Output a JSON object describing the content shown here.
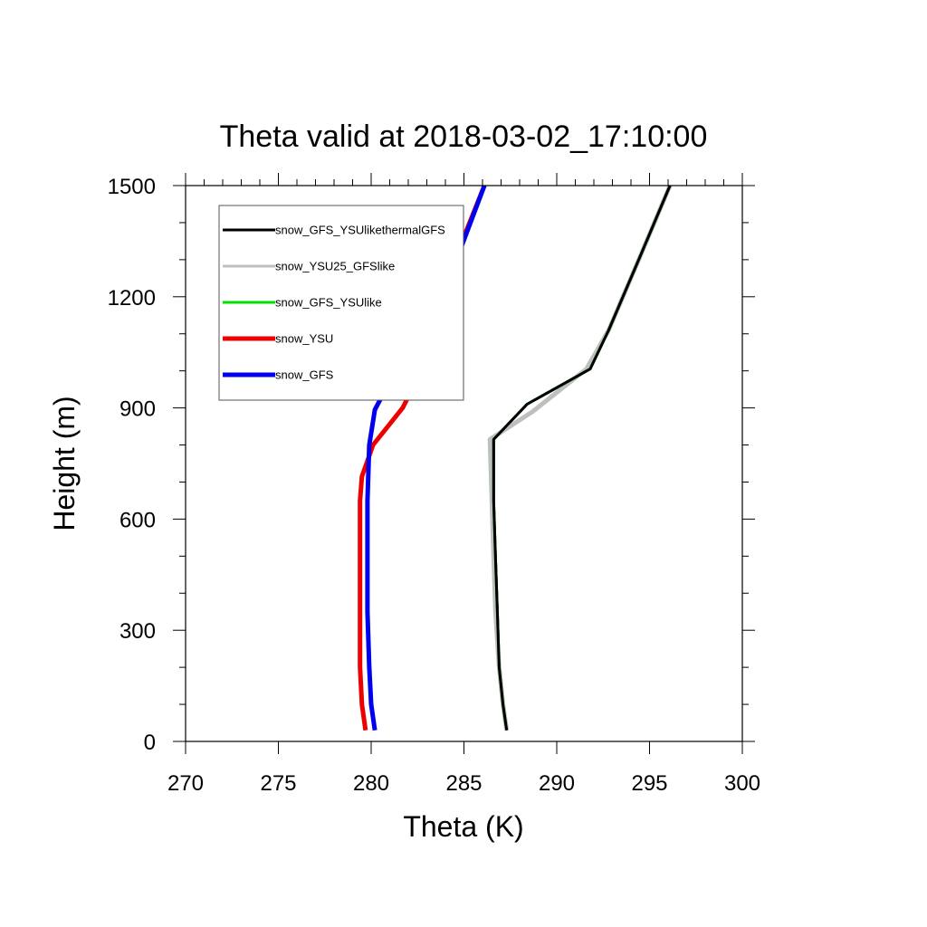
{
  "chart_data": {
    "type": "line",
    "title": "Theta valid at 2018-03-02_17:10:00",
    "xlabel": "Theta (K)",
    "ylabel": "Height (m)",
    "xlim": [
      270,
      300
    ],
    "ylim": [
      0,
      1500
    ],
    "xticks": [
      "270",
      "275",
      "280",
      "285",
      "290",
      "295",
      "300"
    ],
    "yticks": [
      "0",
      "300",
      "600",
      "900",
      "1200",
      "1500"
    ],
    "grid": false,
    "legend_position": "top-left",
    "series": [
      {
        "name": "snow_GFS_YSUlikethermalGFS",
        "color": "#000000",
        "points": [
          [
            287.3,
            30
          ],
          [
            287.1,
            100
          ],
          [
            286.9,
            200
          ],
          [
            286.8,
            350
          ],
          [
            286.7,
            500
          ],
          [
            286.6,
            650
          ],
          [
            286.6,
            815
          ],
          [
            288.4,
            910
          ],
          [
            291.8,
            1005
          ],
          [
            292.8,
            1110
          ],
          [
            294.5,
            1310
          ],
          [
            296.1,
            1500
          ]
        ]
      },
      {
        "name": "snow_YSU25_GFSlike",
        "color": "#bfbfbf",
        "points": [
          [
            287.3,
            30
          ],
          [
            287.1,
            100
          ],
          [
            286.9,
            200
          ],
          [
            286.7,
            350
          ],
          [
            286.6,
            500
          ],
          [
            286.5,
            650
          ],
          [
            286.4,
            815
          ],
          [
            288.7,
            890
          ],
          [
            291.6,
            1005
          ],
          [
            292.8,
            1110
          ],
          [
            294.5,
            1310
          ],
          [
            296.1,
            1500
          ]
        ]
      },
      {
        "name": "snow_GFS_YSUlike",
        "color": "#00e000",
        "points": [
          [
            287.3,
            30
          ],
          [
            287.1,
            100
          ],
          [
            286.9,
            200
          ],
          [
            286.8,
            350
          ],
          [
            286.7,
            500
          ],
          [
            286.6,
            650
          ],
          [
            286.6,
            815
          ],
          [
            288.4,
            910
          ],
          [
            291.8,
            1005
          ],
          [
            292.8,
            1110
          ],
          [
            294.5,
            1310
          ],
          [
            296.1,
            1500
          ]
        ]
      },
      {
        "name": "snow_YSU",
        "color": "#ee0000",
        "points": [
          [
            279.7,
            30
          ],
          [
            279.5,
            100
          ],
          [
            279.4,
            200
          ],
          [
            279.4,
            350
          ],
          [
            279.4,
            500
          ],
          [
            279.4,
            650
          ],
          [
            279.5,
            715
          ],
          [
            280.1,
            800
          ],
          [
            281.7,
            900
          ],
          [
            282.6,
            990
          ],
          [
            283.1,
            1100
          ],
          [
            284.5,
            1300
          ],
          [
            286.1,
            1500
          ]
        ]
      },
      {
        "name": "snow_GFS",
        "color": "#0000ee",
        "points": [
          [
            280.2,
            30
          ],
          [
            280.0,
            100
          ],
          [
            279.9,
            200
          ],
          [
            279.8,
            350
          ],
          [
            279.8,
            500
          ],
          [
            279.8,
            650
          ],
          [
            279.9,
            800
          ],
          [
            280.2,
            895
          ],
          [
            281.2,
            990
          ],
          [
            283.0,
            1085
          ],
          [
            284.6,
            1300
          ],
          [
            286.1,
            1500
          ]
        ]
      }
    ]
  }
}
